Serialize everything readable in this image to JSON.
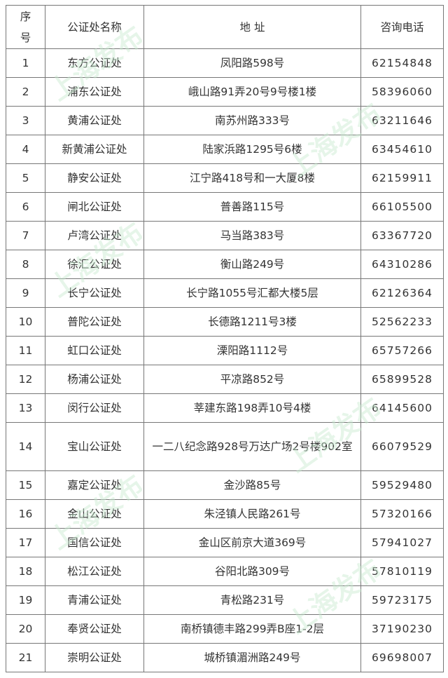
{
  "watermark": "上海发布",
  "headers": {
    "index_line1": "序",
    "index_line2": "号",
    "name": "公证处名称",
    "address": "地 址",
    "phone": "咨询电话"
  },
  "rows": [
    {
      "no": "1",
      "name": "东方公证处",
      "address": "凤阳路598号",
      "phone": "62154848"
    },
    {
      "no": "2",
      "name": "浦东公证处",
      "address": "峨山路91弄20号9号楼1楼",
      "phone": "58396060"
    },
    {
      "no": "3",
      "name": "黄浦公证处",
      "address": "南苏州路333号",
      "phone": "63211646"
    },
    {
      "no": "4",
      "name": "新黄浦公证处",
      "address": "陆家浜路1295号6楼",
      "phone": "63454610"
    },
    {
      "no": "5",
      "name": "静安公证处",
      "address": "江宁路418号和一大厦8楼",
      "phone": "62159911"
    },
    {
      "no": "6",
      "name": "闸北公证处",
      "address": "普善路115号",
      "phone": "66105500"
    },
    {
      "no": "7",
      "name": "卢湾公证处",
      "address": "马当路383号",
      "phone": "63367720"
    },
    {
      "no": "8",
      "name": "徐汇公证处",
      "address": "衡山路249号",
      "phone": "64310286"
    },
    {
      "no": "9",
      "name": "长宁公证处",
      "address": "长宁路1055号汇都大楼5层",
      "phone": "62126364"
    },
    {
      "no": "10",
      "name": "普陀公证处",
      "address": "长德路1211号3楼",
      "phone": "52562233"
    },
    {
      "no": "11",
      "name": "虹口公证处",
      "address": "溧阳路1112号",
      "phone": "65757266"
    },
    {
      "no": "12",
      "name": "杨浦公证处",
      "address": "平凉路852号",
      "phone": "65899528"
    },
    {
      "no": "13",
      "name": "闵行公证处",
      "address": "莘建东路198弄10号4楼",
      "phone": "64145600"
    },
    {
      "no": "14",
      "name": "宝山公证处",
      "address": "一二八纪念路928号万达广场2号楼902室",
      "phone": "66079529"
    },
    {
      "no": "15",
      "name": "嘉定公证处",
      "address": "金沙路85号",
      "phone": "59529480"
    },
    {
      "no": "16",
      "name": "金山公证处",
      "address": "朱泾镇人民路261号",
      "phone": "57320166"
    },
    {
      "no": "17",
      "name": "国信公证处",
      "address": "金山区前京大道369号",
      "phone": "57941027"
    },
    {
      "no": "18",
      "name": "松江公证处",
      "address": "谷阳北路309号",
      "phone": "57810119"
    },
    {
      "no": "19",
      "name": "青浦公证处",
      "address": "青松路231号",
      "phone": "59723175"
    },
    {
      "no": "20",
      "name": "奉贤公证处",
      "address": "南桥镇德丰路299弄B座1-2层",
      "phone": "37190230"
    },
    {
      "no": "21",
      "name": "崇明公证处",
      "address": "城桥镇湄洲路249号",
      "phone": "69698007"
    }
  ]
}
